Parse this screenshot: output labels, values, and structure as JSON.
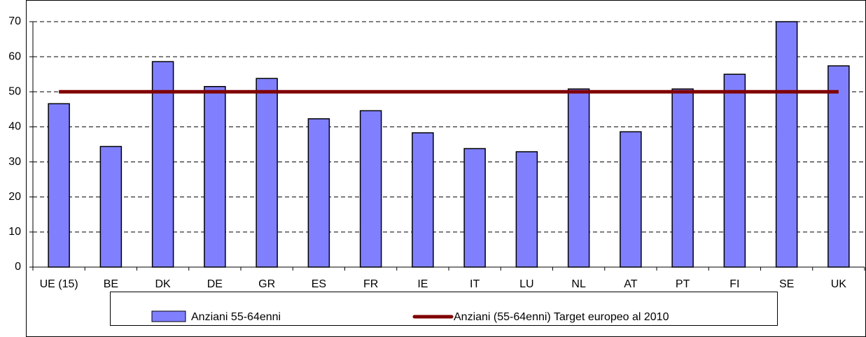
{
  "chart_data": {
    "type": "bar",
    "categories": [
      "UE (15)",
      "BE",
      "DK",
      "DE",
      "GR",
      "ES",
      "FR",
      "IE",
      "IT",
      "LU",
      "NL",
      "AT",
      "PT",
      "FI",
      "SE",
      "UK"
    ],
    "series": [
      {
        "name": "Anziani 55-64enni",
        "type": "bar",
        "color": "#8080ff",
        "values": [
          46.6,
          34.4,
          58.6,
          51.5,
          53.8,
          42.3,
          44.6,
          38.3,
          33.8,
          32.9,
          50.8,
          38.6,
          50.8,
          55.0,
          70.0,
          57.4
        ]
      },
      {
        "name": "Anziani (55-64enni) Target europeo al 2010",
        "type": "line",
        "color": "#800000",
        "values": [
          50,
          50,
          50,
          50,
          50,
          50,
          50,
          50,
          50,
          50,
          50,
          50,
          50,
          50,
          50,
          50
        ]
      }
    ],
    "ylim": [
      0,
      70
    ],
    "yticks": [
      0,
      10,
      20,
      30,
      40,
      50,
      60,
      70
    ],
    "grid": true,
    "legend": "bottom"
  }
}
